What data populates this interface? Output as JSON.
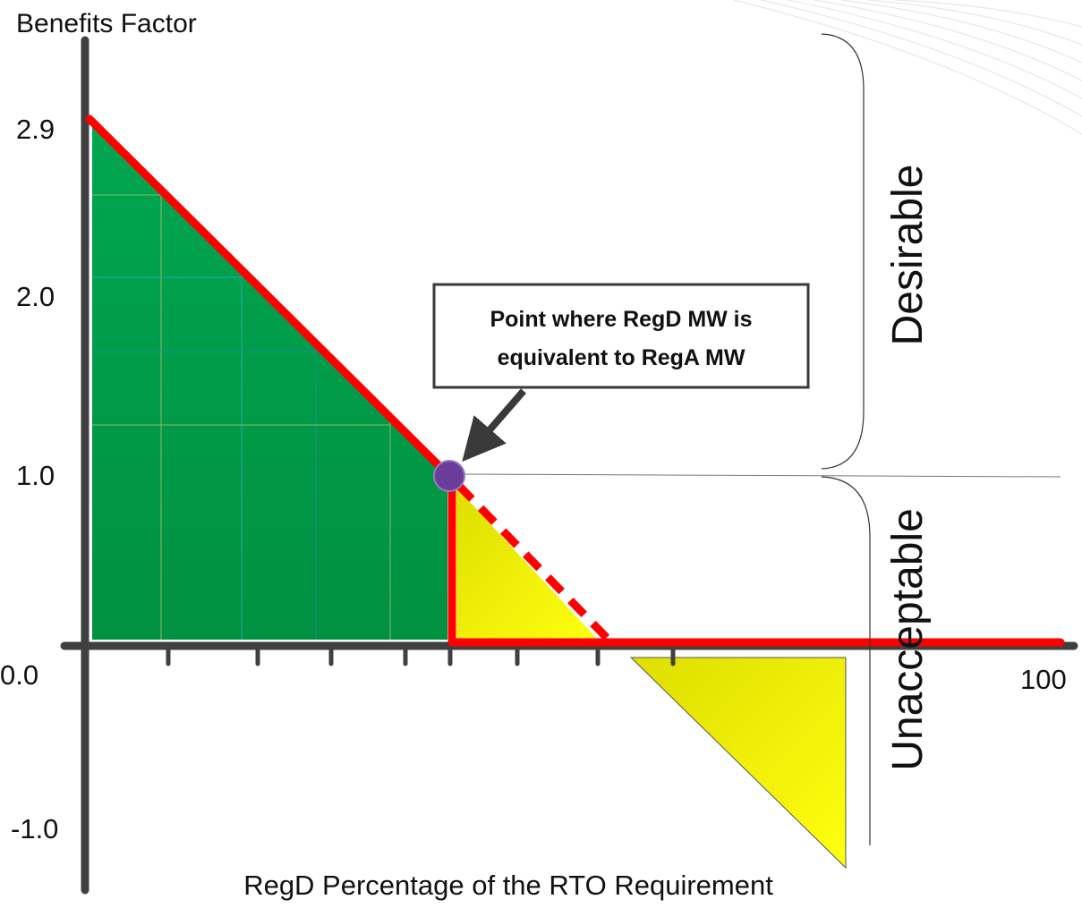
{
  "y_axis_label": "Benefits Factor",
  "y_ticks": [
    "2.9",
    "2.0",
    "1.0",
    "0.0",
    "-1.0"
  ],
  "x_max_label": "100",
  "x_axis_label": "RegD Percentage of the RTO Requirement",
  "callout": {
    "lines": [
      "Point where RegD MW is",
      "equivalent to RegA MW"
    ]
  },
  "brace_labels": [
    "Desirable",
    "Unacceptable"
  ]
}
